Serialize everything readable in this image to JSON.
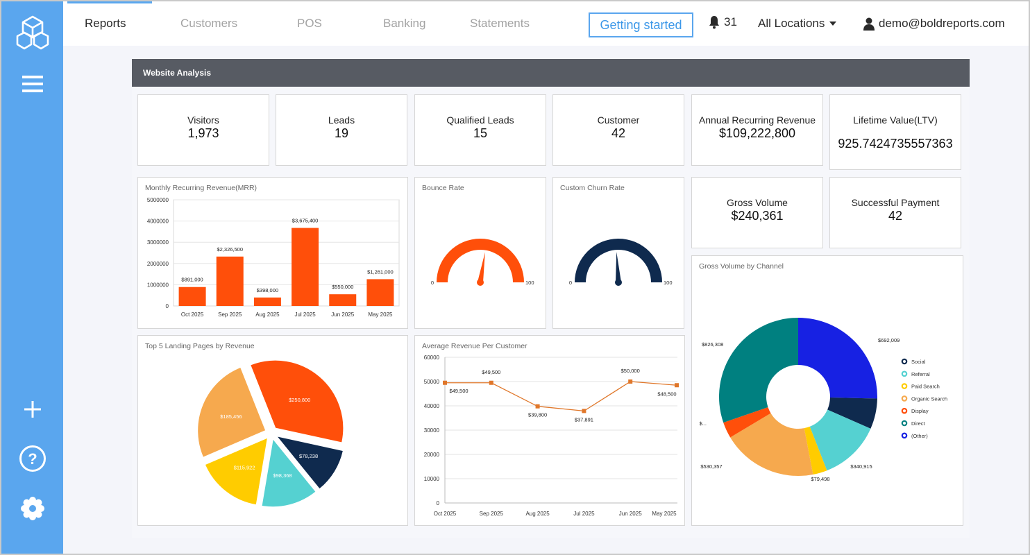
{
  "nav": {
    "tabs": [
      "Reports",
      "Customers",
      "POS",
      "Banking",
      "Statements"
    ],
    "getting_started": "Getting started",
    "notifications_count": "31",
    "locations": "All Locations",
    "user_email": "demo@boldreports.com"
  },
  "report": {
    "title": "Website Analysis",
    "kpis": [
      {
        "label": "Visitors",
        "value": "1,973"
      },
      {
        "label": "Leads",
        "value": "19"
      },
      {
        "label": "Qualified Leads",
        "value": "15"
      },
      {
        "label": "Customer",
        "value": "42"
      },
      {
        "label": "Annual Recurring Revenue",
        "value": "$109,222,800"
      },
      {
        "label": "Lifetime Value(LTV)",
        "value": "925.7424735557363"
      },
      {
        "label": "Gross Volume",
        "value": "$240,361"
      },
      {
        "label": "Successful Payment",
        "value": "42"
      }
    ],
    "mrr_title": "Monthly Recurring Revenue(MRR)",
    "bounce_title": "Bounce Rate",
    "churn_title": "Custom Churn Rate",
    "landing_title": "Top 5 Landing Pages by Revenue",
    "arpc_title": "Average Revenue Per Customer",
    "gross_channel_title": "Gross Volume by Channel"
  },
  "colors": {
    "accent": "#5aa6ee",
    "bar": "#ff4f0a",
    "line": "#e0772a",
    "gauge_orange": "#ff4f0a",
    "gauge_navy": "#0f2a4e"
  },
  "chart_data": [
    {
      "type": "bar",
      "title": "Monthly Recurring Revenue(MRR)",
      "categories": [
        "Oct 2025",
        "Sep 2025",
        "Aug 2025",
        "Jul 2025",
        "Jun 2025",
        "May 2025"
      ],
      "values": [
        891000,
        2326500,
        398000,
        3675400,
        550000,
        1261000
      ],
      "labels": [
        "$891,000",
        "$2,326,500",
        "$398,000",
        "$3,675,400",
        "$550,000",
        "$1,261,000"
      ],
      "ylim": [
        0,
        5000000
      ],
      "yticks": [
        "0",
        "1000000",
        "2000000",
        "3000000",
        "4000000",
        "5000000"
      ],
      "color": "#ff4f0a"
    },
    {
      "type": "gauge",
      "title": "Bounce Rate",
      "min": "0",
      "max": "100",
      "value": 55,
      "color": "#ff4f0a"
    },
    {
      "type": "gauge",
      "title": "Custom Churn Rate",
      "min": "0",
      "max": "100",
      "value": 48,
      "color": "#0f2a4e"
    },
    {
      "type": "pie",
      "title": "Top 5 Landing Pages by Revenue",
      "values": [
        250800,
        78238,
        98368,
        115922,
        185456
      ],
      "labels": [
        "$250,800",
        "$78,238",
        "$98,368",
        "$115,922",
        "$185,456"
      ],
      "colors": [
        "#ff4f0a",
        "#0f2a4e",
        "#55d1d1",
        "#ffcc00",
        "#f6a94e"
      ]
    },
    {
      "type": "line",
      "title": "Average Revenue Per Customer",
      "categories": [
        "Oct 2025",
        "Sep 2025",
        "Aug 2025",
        "Jul 2025",
        "Jun 2025",
        "May 2025"
      ],
      "values": [
        49500,
        49500,
        39800,
        37891,
        50000,
        48500
      ],
      "labels": [
        "$49,500",
        "$49,500",
        "$39,800",
        "$37,891",
        "$50,000",
        "$48,500"
      ],
      "ylim": [
        0,
        60000
      ],
      "yticks": [
        "0",
        "10000",
        "20000",
        "30000",
        "40000",
        "50000",
        "60000"
      ],
      "color": "#e0772a"
    },
    {
      "type": "donut",
      "title": "Gross Volume by Channel",
      "values": [
        692009,
        170000,
        340915,
        79498,
        530357,
        90000,
        826308
      ],
      "labels": [
        "$692,009",
        "$...",
        "$340,915",
        "$79,498",
        "$530,357",
        "$...",
        "$826,308"
      ],
      "colors": [
        "#1721e3",
        "#0f2a4e",
        "#55d1d1",
        "#ffcc00",
        "#f6a94e",
        "#ff4f0a",
        "#008080"
      ],
      "legend": [
        "Social",
        "Referral",
        "Paid Search",
        "Organic Search",
        "Display",
        "Direct",
        "(Other)"
      ],
      "legend_colors": [
        "#0f2a4e",
        "#55d1d1",
        "#ffcc00",
        "#f6a94e",
        "#ff4f0a",
        "#008080",
        "#1721e3"
      ],
      "legend_position": "right"
    }
  ]
}
